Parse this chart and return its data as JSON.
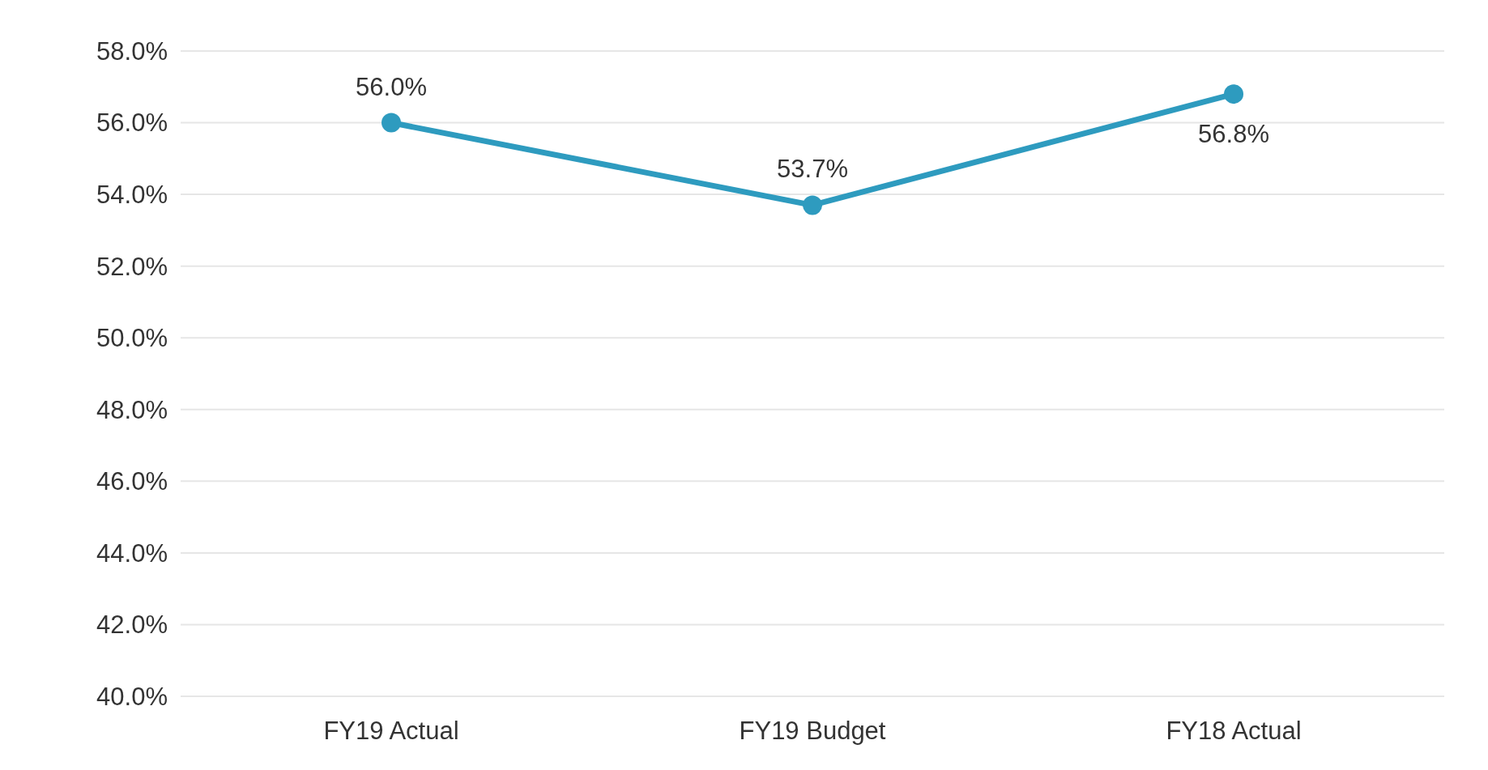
{
  "chart_data": {
    "type": "line",
    "categories": [
      "FY19 Actual",
      "FY19 Budget",
      "FY18 Actual"
    ],
    "series": [
      {
        "color": "#2e9bbf",
        "values": [
          56.0,
          53.7,
          56.8
        ],
        "value_labels": [
          "56.0%",
          "53.7%",
          "56.8%"
        ]
      }
    ],
    "ylim": [
      40,
      58
    ],
    "yticks": [
      {
        "value": 40,
        "label": "40.0%"
      },
      {
        "value": 42,
        "label": "42.0%"
      },
      {
        "value": 44,
        "label": "44.0%"
      },
      {
        "value": 46,
        "label": "46.0%"
      },
      {
        "value": 48,
        "label": "48.0%"
      },
      {
        "value": 50,
        "label": "50.0%"
      },
      {
        "value": 52,
        "label": "52.0%"
      },
      {
        "value": 54,
        "label": "54.0%"
      },
      {
        "value": 56,
        "label": "56.0%"
      },
      {
        "value": 58,
        "label": "58.0%"
      }
    ],
    "grid": "y",
    "marker": "circle",
    "line_style": "solid"
  }
}
